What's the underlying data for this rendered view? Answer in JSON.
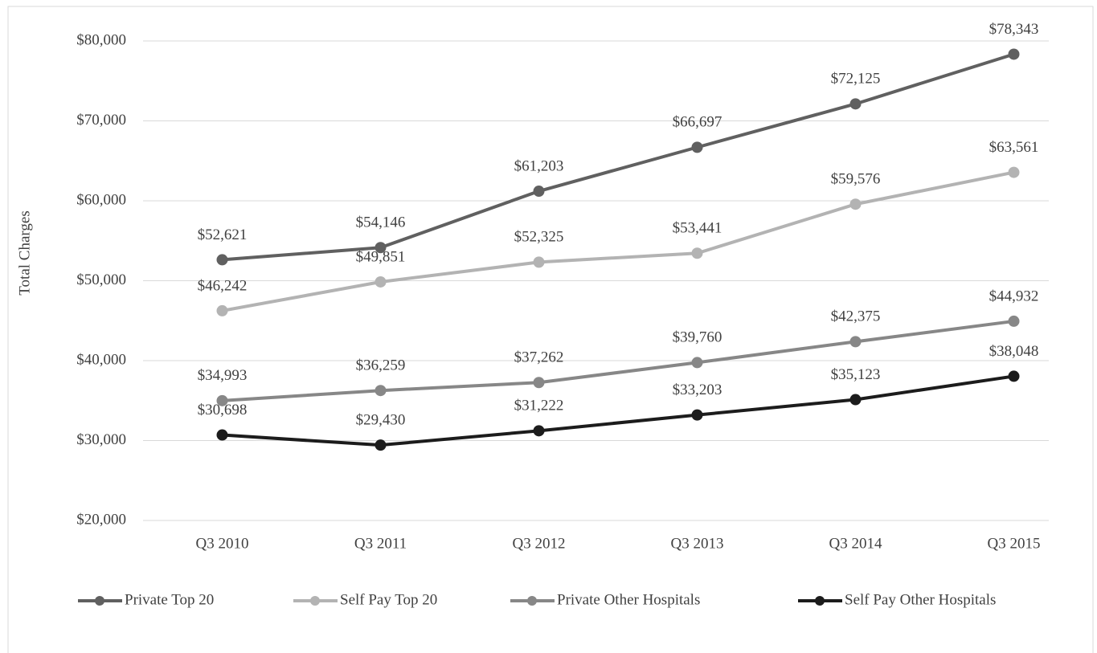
{
  "chart_data": {
    "type": "line",
    "y_label": "Total Charges",
    "categories": [
      "Q3 2010",
      "Q3 2011",
      "Q3 2012",
      "Q3 2013",
      "Q3 2014",
      "Q3 2015"
    ],
    "series": [
      {
        "name": "Private Top 20",
        "color": "#606060",
        "values": [
          52621,
          54146,
          61203,
          66697,
          72125,
          78343
        ],
        "value_labels": [
          "$52,621",
          "$54,146",
          "$61,203",
          "$66,697",
          "$72,125",
          "$78,343"
        ]
      },
      {
        "name": "Self Pay Top 20",
        "color": "#b3b3b3",
        "values": [
          46242,
          49851,
          52325,
          53441,
          59576,
          63561
        ],
        "value_labels": [
          "$46,242",
          "$49,851",
          "$52,325",
          "$53,441",
          "$59,576",
          "$63,561"
        ]
      },
      {
        "name": "Private Other Hospitals",
        "color": "#878787",
        "values": [
          34993,
          36259,
          37262,
          39760,
          42375,
          44932
        ],
        "value_labels": [
          "$34,993",
          "$36,259",
          "$37,262",
          "$39,760",
          "$42,375",
          "$44,932"
        ]
      },
      {
        "name": "Self Pay Other Hospitals",
        "color": "#1c1c1c",
        "values": [
          30698,
          29430,
          31222,
          33203,
          35123,
          38048
        ],
        "value_labels": [
          "$30,698",
          "$29,430",
          "$31,222",
          "$33,203",
          "$35,123",
          "$38,048"
        ]
      }
    ],
    "ylim": [
      20000,
      80000
    ],
    "yticks": [
      {
        "value": 20000,
        "label": "$20,000"
      },
      {
        "value": 30000,
        "label": "$30,000"
      },
      {
        "value": 40000,
        "label": "$40,000"
      },
      {
        "value": 50000,
        "label": "$50,000"
      },
      {
        "value": 60000,
        "label": "$60,000"
      },
      {
        "value": 70000,
        "label": "$70,000"
      },
      {
        "value": 80000,
        "label": "$80,000"
      }
    ],
    "grid": true,
    "legend": "bottom"
  }
}
